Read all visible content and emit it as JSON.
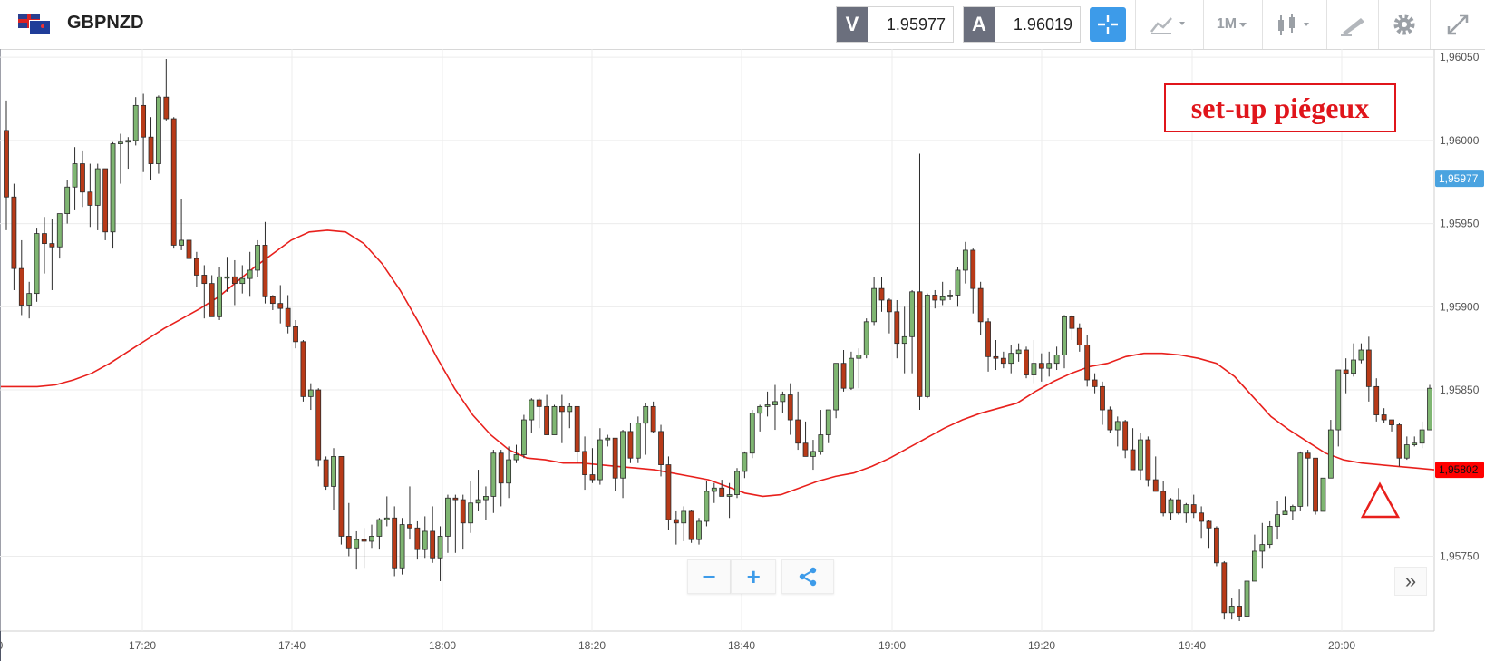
{
  "header": {
    "symbol": "GBPNZD",
    "bid_label": "V",
    "bid_value": "1.95977",
    "ask_label": "A",
    "ask_value": "1.96019",
    "timeframe": "1M"
  },
  "annotation": "set-up piégeux",
  "controls": {
    "zoom_out": "−",
    "zoom_in": "+",
    "more": "»"
  },
  "icons": [
    "flag-gb-nz-icon",
    "crosshair-icon",
    "chart-type-icon",
    "candlestick-icon",
    "draw-icon",
    "gear-icon",
    "expand-icon",
    "share-icon",
    "double-chevron-icon",
    "triangle-marker-icon"
  ],
  "colors": {
    "bull": "#7fb672",
    "bear": "#b83a18",
    "ma": "#e8201c",
    "accent": "#3d9be9",
    "current_price": "#4aa3e0",
    "ma_price": "#ff0000",
    "annotation": "#e0151b"
  },
  "chart_data": {
    "type": "candlestick",
    "timeframe": "1M",
    "ylim": [
      1.95705,
      1.96055
    ],
    "y_ticks": [
      "1,96050",
      "1,96000",
      "1,95950",
      "1,95900",
      "1,95850",
      "1,95750"
    ],
    "x_ticks": [
      "0",
      "17:20",
      "17:40",
      "18:00",
      "18:20",
      "18:40",
      "19:00",
      "19:20",
      "19:40",
      "20:00"
    ],
    "price_labels": {
      "current": "1,95977",
      "current_value": 1.95977,
      "ma": "1,95802",
      "ma_value": 1.95802
    },
    "candles_ohlc": [
      [
        1.96006,
        1.96024,
        1.95946,
        1.95966
      ],
      [
        1.95966,
        1.95974,
        1.9591,
        1.95923
      ],
      [
        1.95923,
        1.9594,
        1.95895,
        1.95901
      ],
      [
        1.95901,
        1.95915,
        1.95893,
        1.95908
      ],
      [
        1.95908,
        1.95947,
        1.95903,
        1.95944
      ],
      [
        1.95944,
        1.95954,
        1.9592,
        1.95938
      ],
      [
        1.95938,
        1.95953,
        1.9591,
        1.95936
      ],
      [
        1.95936,
        1.95956,
        1.95929,
        1.95956
      ],
      [
        1.95956,
        1.95976,
        1.9595,
        1.95972
      ],
      [
        1.95972,
        1.95996,
        1.95958,
        1.95986
      ],
      [
        1.95986,
        1.95994,
        1.9596,
        1.95969
      ],
      [
        1.95969,
        1.95986,
        1.95948,
        1.95961
      ],
      [
        1.95961,
        1.95986,
        1.95946,
        1.95983
      ],
      [
        1.95983,
        1.95983,
        1.9594,
        1.95945
      ],
      [
        1.95945,
        1.95999,
        1.95935,
        1.95998
      ],
      [
        1.95998,
        1.96004,
        1.95974,
        1.95999
      ],
      [
        1.95999,
        1.96002,
        1.95983,
        1.96
      ],
      [
        1.96,
        1.96026,
        1.95997,
        1.96021
      ],
      [
        1.96021,
        1.96028,
        1.95981,
        1.96002
      ],
      [
        1.96002,
        1.96014,
        1.95976,
        1.95986
      ],
      [
        1.95986,
        1.96027,
        1.9598,
        1.96026
      ],
      [
        1.96026,
        1.96049,
        1.96012,
        1.96013
      ],
      [
        1.96013,
        1.96014,
        1.95935,
        1.95937
      ],
      [
        1.95937,
        1.95965,
        1.95934,
        1.9594
      ],
      [
        1.9594,
        1.95949,
        1.95927,
        1.95929
      ],
      [
        1.95929,
        1.95933,
        1.95912,
        1.95919
      ],
      [
        1.95919,
        1.95925,
        1.95893,
        1.95914
      ],
      [
        1.95914,
        1.95919,
        1.95899,
        1.95894
      ],
      [
        1.95894,
        1.95924,
        1.95892,
        1.95918
      ],
      [
        1.95918,
        1.9593,
        1.95909,
        1.95918
      ],
      [
        1.95918,
        1.95928,
        1.95901,
        1.95914
      ],
      [
        1.95914,
        1.95925,
        1.95908,
        1.95917
      ],
      [
        1.95917,
        1.95933,
        1.95906,
        1.95922
      ],
      [
        1.95922,
        1.9594,
        1.95918,
        1.95937
      ],
      [
        1.95937,
        1.95951,
        1.95902,
        1.95906
      ],
      [
        1.95906,
        1.95907,
        1.95898,
        1.95902
      ],
      [
        1.95902,
        1.95913,
        1.9589,
        1.95899
      ],
      [
        1.95899,
        1.95907,
        1.95884,
        1.95888
      ],
      [
        1.95888,
        1.95892,
        1.95875,
        1.95879
      ],
      [
        1.95879,
        1.9588,
        1.95843,
        1.95846
      ],
      [
        1.95846,
        1.95854,
        1.95838,
        1.9585
      ],
      [
        1.9585,
        1.95851,
        1.95804,
        1.95808
      ],
      [
        1.95808,
        1.9581,
        1.9579,
        1.95792
      ],
      [
        1.95792,
        1.95815,
        1.95778,
        1.9581
      ],
      [
        1.9581,
        1.9581,
        1.95757,
        1.95762
      ],
      [
        1.95762,
        1.95782,
        1.9575,
        1.95755
      ],
      [
        1.95755,
        1.95765,
        1.95742,
        1.9576
      ],
      [
        1.9576,
        1.95767,
        1.95743,
        1.95759
      ],
      [
        1.95759,
        1.95769,
        1.95755,
        1.95762
      ],
      [
        1.95762,
        1.95773,
        1.95754,
        1.95772
      ],
      [
        1.95772,
        1.95786,
        1.95768,
        1.95773
      ],
      [
        1.95773,
        1.9578,
        1.95738,
        1.95743
      ],
      [
        1.95743,
        1.95773,
        1.95739,
        1.95769
      ],
      [
        1.95769,
        1.95792,
        1.9576,
        1.95767
      ],
      [
        1.95767,
        1.95771,
        1.95748,
        1.95754
      ],
      [
        1.95754,
        1.95774,
        1.95749,
        1.95765
      ],
      [
        1.95765,
        1.9578,
        1.95746,
        1.95749
      ],
      [
        1.95749,
        1.95768,
        1.95735,
        1.95762
      ],
      [
        1.95762,
        1.95787,
        1.95752,
        1.95785
      ],
      [
        1.95785,
        1.95787,
        1.95752,
        1.95784
      ],
      [
        1.95784,
        1.95787,
        1.95754,
        1.9577
      ],
      [
        1.9577,
        1.95795,
        1.95764,
        1.95782
      ],
      [
        1.95782,
        1.95802,
        1.95777,
        1.95784
      ],
      [
        1.95784,
        1.95792,
        1.95772,
        1.95786
      ],
      [
        1.95786,
        1.95814,
        1.95776,
        1.95812
      ],
      [
        1.95812,
        1.95814,
        1.9578,
        1.95794
      ],
      [
        1.95794,
        1.95816,
        1.95785,
        1.95808
      ],
      [
        1.95808,
        1.95817,
        1.95806,
        1.95811
      ],
      [
        1.95811,
        1.95835,
        1.95809,
        1.95832
      ],
      [
        1.95832,
        1.95845,
        1.95824,
        1.95844
      ],
      [
        1.95844,
        1.95845,
        1.95827,
        1.9584
      ],
      [
        1.9584,
        1.95847,
        1.95823,
        1.95823
      ],
      [
        1.95823,
        1.95841,
        1.95823,
        1.9584
      ],
      [
        1.9584,
        1.95847,
        1.95818,
        1.95837
      ],
      [
        1.95837,
        1.95842,
        1.95827,
        1.9584
      ],
      [
        1.9584,
        1.9584,
        1.95806,
        1.95813
      ],
      [
        1.95813,
        1.95822,
        1.9579,
        1.95799
      ],
      [
        1.95799,
        1.95815,
        1.95794,
        1.95796
      ],
      [
        1.95796,
        1.95827,
        1.95793,
        1.9582
      ],
      [
        1.9582,
        1.95823,
        1.95816,
        1.95821
      ],
      [
        1.95821,
        1.95821,
        1.95789,
        1.95797
      ],
      [
        1.95797,
        1.95826,
        1.95785,
        1.95825
      ],
      [
        1.95825,
        1.9583,
        1.95806,
        1.95809
      ],
      [
        1.95809,
        1.95834,
        1.95806,
        1.9583
      ],
      [
        1.9583,
        1.95842,
        1.95811,
        1.9584
      ],
      [
        1.9584,
        1.95843,
        1.95824,
        1.95825
      ],
      [
        1.95825,
        1.95829,
        1.95798,
        1.95805
      ],
      [
        1.95805,
        1.9581,
        1.95766,
        1.95772
      ],
      [
        1.95772,
        1.95777,
        1.95757,
        1.9577
      ],
      [
        1.9577,
        1.9578,
        1.95759,
        1.95777
      ],
      [
        1.95777,
        1.95778,
        1.95758,
        1.9576
      ],
      [
        1.9576,
        1.95773,
        1.95757,
        1.95771
      ],
      [
        1.95771,
        1.95795,
        1.95768,
        1.95789
      ],
      [
        1.95789,
        1.95794,
        1.95782,
        1.95791
      ],
      [
        1.95791,
        1.95796,
        1.95786,
        1.95786
      ],
      [
        1.95786,
        1.95794,
        1.95773,
        1.95787
      ],
      [
        1.95787,
        1.95803,
        1.95785,
        1.95801
      ],
      [
        1.95801,
        1.95813,
        1.95797,
        1.95812
      ],
      [
        1.95812,
        1.95838,
        1.95809,
        1.95836
      ],
      [
        1.95836,
        1.95841,
        1.95825,
        1.9584
      ],
      [
        1.9584,
        1.95849,
        1.95834,
        1.95841
      ],
      [
        1.95841,
        1.95853,
        1.95826,
        1.95843
      ],
      [
        1.95843,
        1.95849,
        1.95836,
        1.95847
      ],
      [
        1.95847,
        1.95854,
        1.95823,
        1.95832
      ],
      [
        1.95832,
        1.95849,
        1.95814,
        1.95818
      ],
      [
        1.95818,
        1.95831,
        1.9581,
        1.9581
      ],
      [
        1.9581,
        1.9582,
        1.95802,
        1.95813
      ],
      [
        1.95813,
        1.95838,
        1.95811,
        1.95823
      ],
      [
        1.95823,
        1.95837,
        1.95818,
        1.95838
      ],
      [
        1.95838,
        1.95866,
        1.95833,
        1.95866
      ],
      [
        1.95866,
        1.95874,
        1.95849,
        1.95851
      ],
      [
        1.95851,
        1.95873,
        1.9585,
        1.95869
      ],
      [
        1.95869,
        1.95875,
        1.95851,
        1.95871
      ],
      [
        1.95871,
        1.95893,
        1.95869,
        1.95891
      ],
      [
        1.95891,
        1.95918,
        1.95889,
        1.95911
      ],
      [
        1.95911,
        1.95918,
        1.95897,
        1.95904
      ],
      [
        1.95904,
        1.95905,
        1.95884,
        1.95897
      ],
      [
        1.95897,
        1.95904,
        1.95869,
        1.95878
      ],
      [
        1.95878,
        1.959,
        1.9586,
        1.95882
      ],
      [
        1.95882,
        1.9591,
        1.9586,
        1.95909
      ],
      [
        1.95909,
        1.95992,
        1.95838,
        1.95846
      ],
      [
        1.95846,
        1.95908,
        1.95845,
        1.95907
      ],
      [
        1.95907,
        1.9591,
        1.95899,
        1.95904
      ],
      [
        1.95904,
        1.95915,
        1.95901,
        1.95906
      ],
      [
        1.95906,
        1.9591,
        1.95904,
        1.95907
      ],
      [
        1.95907,
        1.95924,
        1.959,
        1.95922
      ],
      [
        1.95922,
        1.95939,
        1.95914,
        1.95934
      ],
      [
        1.95934,
        1.95935,
        1.95896,
        1.95911
      ],
      [
        1.95911,
        1.95915,
        1.95883,
        1.95891
      ],
      [
        1.95891,
        1.95893,
        1.95861,
        1.9587
      ],
      [
        1.9587,
        1.9588,
        1.95862,
        1.95869
      ],
      [
        1.95869,
        1.95873,
        1.95863,
        1.95866
      ],
      [
        1.95866,
        1.95877,
        1.9586,
        1.95872
      ],
      [
        1.95872,
        1.95878,
        1.95867,
        1.95874
      ],
      [
        1.95874,
        1.95876,
        1.95857,
        1.95859
      ],
      [
        1.95859,
        1.9588,
        1.95854,
        1.95866
      ],
      [
        1.95866,
        1.95872,
        1.95855,
        1.95863
      ],
      [
        1.95863,
        1.95873,
        1.95858,
        1.95866
      ],
      [
        1.95866,
        1.95876,
        1.95862,
        1.95871
      ],
      [
        1.95871,
        1.95895,
        1.95863,
        1.95894
      ],
      [
        1.95894,
        1.95895,
        1.9588,
        1.95887
      ],
      [
        1.95887,
        1.9589,
        1.95873,
        1.95877
      ],
      [
        1.95877,
        1.95883,
        1.95852,
        1.95856
      ],
      [
        1.95856,
        1.9586,
        1.95848,
        1.95852
      ],
      [
        1.95852,
        1.95855,
        1.95829,
        1.95838
      ],
      [
        1.95838,
        1.9584,
        1.95824,
        1.95826
      ],
      [
        1.95826,
        1.95834,
        1.95816,
        1.95831
      ],
      [
        1.95831,
        1.95832,
        1.95809,
        1.95814
      ],
      [
        1.95814,
        1.95827,
        1.95805,
        1.95802
      ],
      [
        1.95802,
        1.95824,
        1.95796,
        1.9582
      ],
      [
        1.9582,
        1.95822,
        1.95792,
        1.95796
      ],
      [
        1.95796,
        1.9581,
        1.95789,
        1.95789
      ],
      [
        1.95789,
        1.95795,
        1.95774,
        1.95776
      ],
      [
        1.95776,
        1.95785,
        1.95772,
        1.95784
      ],
      [
        1.95784,
        1.95791,
        1.95775,
        1.95776
      ],
      [
        1.95776,
        1.95782,
        1.9577,
        1.95781
      ],
      [
        1.95781,
        1.95787,
        1.95773,
        1.95776
      ],
      [
        1.95776,
        1.9578,
        1.95761,
        1.95771
      ],
      [
        1.95771,
        1.95772,
        1.95755,
        1.95767
      ],
      [
        1.95767,
        1.95768,
        1.95744,
        1.95746
      ],
      [
        1.95746,
        1.95747,
        1.95712,
        1.95716
      ],
      [
        1.95716,
        1.95725,
        1.95712,
        1.9572
      ],
      [
        1.9572,
        1.9573,
        1.95711,
        1.95714
      ],
      [
        1.95714,
        1.95735,
        1.95713,
        1.95735
      ],
      [
        1.95735,
        1.95763,
        1.95735,
        1.95753
      ],
      [
        1.95753,
        1.9577,
        1.95743,
        1.95757
      ],
      [
        1.95757,
        1.95771,
        1.95755,
        1.95768
      ],
      [
        1.95768,
        1.95783,
        1.9576,
        1.95775
      ],
      [
        1.95775,
        1.95786,
        1.95775,
        1.95777
      ],
      [
        1.95777,
        1.95781,
        1.95772,
        1.9578
      ],
      [
        1.9578,
        1.95813,
        1.95777,
        1.95812
      ],
      [
        1.95812,
        1.95814,
        1.9578,
        1.95809
      ],
      [
        1.95809,
        1.95809,
        1.95775,
        1.95777
      ],
      [
        1.95777,
        1.95797,
        1.95777,
        1.95797
      ],
      [
        1.95797,
        1.95832,
        1.95797,
        1.95826
      ],
      [
        1.95826,
        1.95862,
        1.95816,
        1.95862
      ],
      [
        1.95862,
        1.95869,
        1.95848,
        1.9586
      ],
      [
        1.9586,
        1.95878,
        1.95858,
        1.95868
      ],
      [
        1.95868,
        1.95878,
        1.95866,
        1.95874
      ],
      [
        1.95874,
        1.95882,
        1.95843,
        1.95852
      ],
      [
        1.95852,
        1.95857,
        1.95831,
        1.95835
      ],
      [
        1.95835,
        1.95839,
        1.9583,
        1.95832
      ],
      [
        1.95832,
        1.95831,
        1.95825,
        1.95829
      ],
      [
        1.95829,
        1.9583,
        1.95804,
        1.95809
      ],
      [
        1.95809,
        1.95822,
        1.95808,
        1.95817
      ],
      [
        1.95817,
        1.95822,
        1.95816,
        1.95818
      ],
      [
        1.95818,
        1.95831,
        1.95815,
        1.95826
      ],
      [
        1.95826,
        1.95853,
        1.95826,
        1.95851
      ]
    ],
    "moving_average": [
      1.95852,
      1.95852,
      1.95852,
      1.95853,
      1.95856,
      1.9586,
      1.95866,
      1.95873,
      1.9588,
      1.95887,
      1.95893,
      1.95899,
      1.95906,
      1.95915,
      1.95924,
      1.95932,
      1.9594,
      1.95945,
      1.95946,
      1.95945,
      1.95938,
      1.95926,
      1.9591,
      1.95891,
      1.9587,
      1.95851,
      1.95835,
      1.95823,
      1.95814,
      1.95809,
      1.95808,
      1.95806,
      1.95806,
      1.95805,
      1.95804,
      1.95803,
      1.95802,
      1.958,
      1.95798,
      1.95796,
      1.95792,
      1.95788,
      1.95786,
      1.95787,
      1.95791,
      1.95795,
      1.95798,
      1.958,
      1.95804,
      1.95809,
      1.95815,
      1.95821,
      1.95827,
      1.95832,
      1.95836,
      1.95839,
      1.95842,
      1.95849,
      1.95855,
      1.9586,
      1.95864,
      1.95866,
      1.9587,
      1.95872,
      1.95872,
      1.95871,
      1.95869,
      1.95866,
      1.95858,
      1.95846,
      1.95834,
      1.95826,
      1.95819,
      1.95812,
      1.95808,
      1.95806,
      1.95805,
      1.95804,
      1.95803,
      1.95802
    ]
  }
}
